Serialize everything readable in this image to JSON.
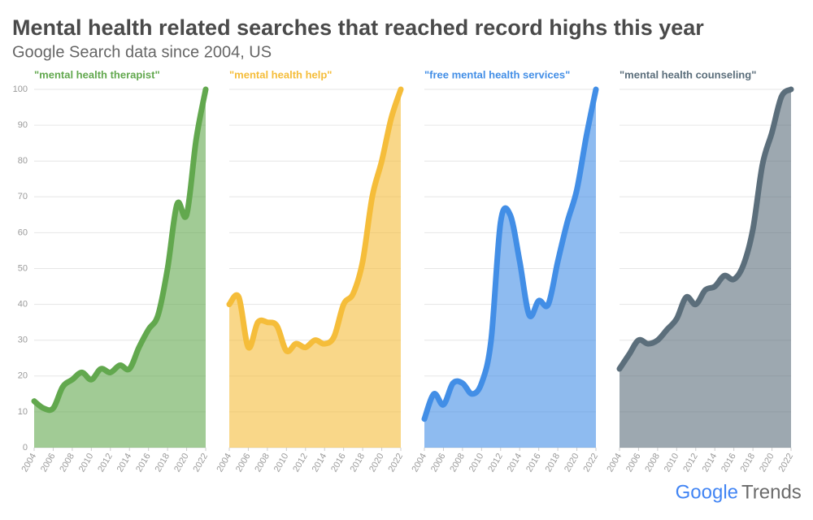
{
  "title": "Mental health related searches that reached record highs this year",
  "subtitle": "Google Search data since 2004, US",
  "logo": {
    "brand": "Google",
    "product": "Trends"
  },
  "chart_data": [
    {
      "type": "area",
      "title": "\"mental health therapist\"",
      "color": "#62a84e",
      "x": [
        2004,
        2005,
        2006,
        2007,
        2008,
        2009,
        2010,
        2011,
        2012,
        2013,
        2014,
        2015,
        2016,
        2017,
        2018,
        2019,
        2020,
        2021,
        2022
      ],
      "values": [
        13,
        11,
        11,
        17,
        19,
        21,
        19,
        22,
        21,
        23,
        22,
        28,
        33,
        37,
        50,
        68,
        65,
        86,
        100
      ],
      "xlim": [
        2004,
        2022
      ],
      "xticks": [
        2004,
        2006,
        2008,
        2010,
        2012,
        2014,
        2016,
        2018,
        2020,
        2022
      ],
      "ylim": [
        0,
        100
      ],
      "yticks": [
        0,
        10,
        20,
        30,
        40,
        50,
        60,
        70,
        80,
        90,
        100
      ],
      "grid": true
    },
    {
      "type": "area",
      "title": "\"mental health help\"",
      "color": "#f5bd3a",
      "x": [
        2004,
        2005,
        2006,
        2007,
        2008,
        2009,
        2010,
        2011,
        2012,
        2013,
        2014,
        2015,
        2016,
        2017,
        2018,
        2019,
        2020,
        2021,
        2022
      ],
      "values": [
        40,
        42,
        28,
        35,
        35,
        34,
        27,
        29,
        28,
        30,
        29,
        31,
        40,
        43,
        52,
        70,
        80,
        92,
        100
      ],
      "xlim": [
        2004,
        2022
      ],
      "xticks": [
        2004,
        2006,
        2008,
        2010,
        2012,
        2014,
        2016,
        2018,
        2020,
        2022
      ],
      "ylim": [
        0,
        100
      ],
      "yticks": [
        0,
        10,
        20,
        30,
        40,
        50,
        60,
        70,
        80,
        90,
        100
      ],
      "grid": true
    },
    {
      "type": "area",
      "title": "\"free mental health services\"",
      "color": "#428ee6",
      "x": [
        2004,
        2005,
        2006,
        2007,
        2008,
        2009,
        2010,
        2011,
        2012,
        2013,
        2014,
        2015,
        2016,
        2017,
        2018,
        2019,
        2020,
        2021,
        2022
      ],
      "values": [
        8,
        15,
        12,
        18,
        18,
        15,
        18,
        30,
        63,
        65,
        52,
        37,
        41,
        40,
        52,
        63,
        72,
        87,
        100
      ],
      "xlim": [
        2004,
        2022
      ],
      "xticks": [
        2004,
        2006,
        2008,
        2010,
        2012,
        2014,
        2016,
        2018,
        2020,
        2022
      ],
      "ylim": [
        0,
        100
      ],
      "yticks": [
        0,
        10,
        20,
        30,
        40,
        50,
        60,
        70,
        80,
        90,
        100
      ],
      "grid": true
    },
    {
      "type": "area",
      "title": "\"mental health counseling\"",
      "color": "#5b6e7b",
      "x": [
        2004,
        2005,
        2006,
        2007,
        2008,
        2009,
        2010,
        2011,
        2012,
        2013,
        2014,
        2015,
        2016,
        2017,
        2018,
        2019,
        2020,
        2021,
        2022
      ],
      "values": [
        22,
        26,
        30,
        29,
        30,
        33,
        36,
        42,
        40,
        44,
        45,
        48,
        47,
        51,
        61,
        79,
        88,
        98,
        100
      ],
      "xlim": [
        2004,
        2022
      ],
      "xticks": [
        2004,
        2006,
        2008,
        2010,
        2012,
        2014,
        2016,
        2018,
        2020,
        2022
      ],
      "ylim": [
        0,
        100
      ],
      "yticks": [
        0,
        10,
        20,
        30,
        40,
        50,
        60,
        70,
        80,
        90,
        100
      ],
      "grid": true
    }
  ]
}
